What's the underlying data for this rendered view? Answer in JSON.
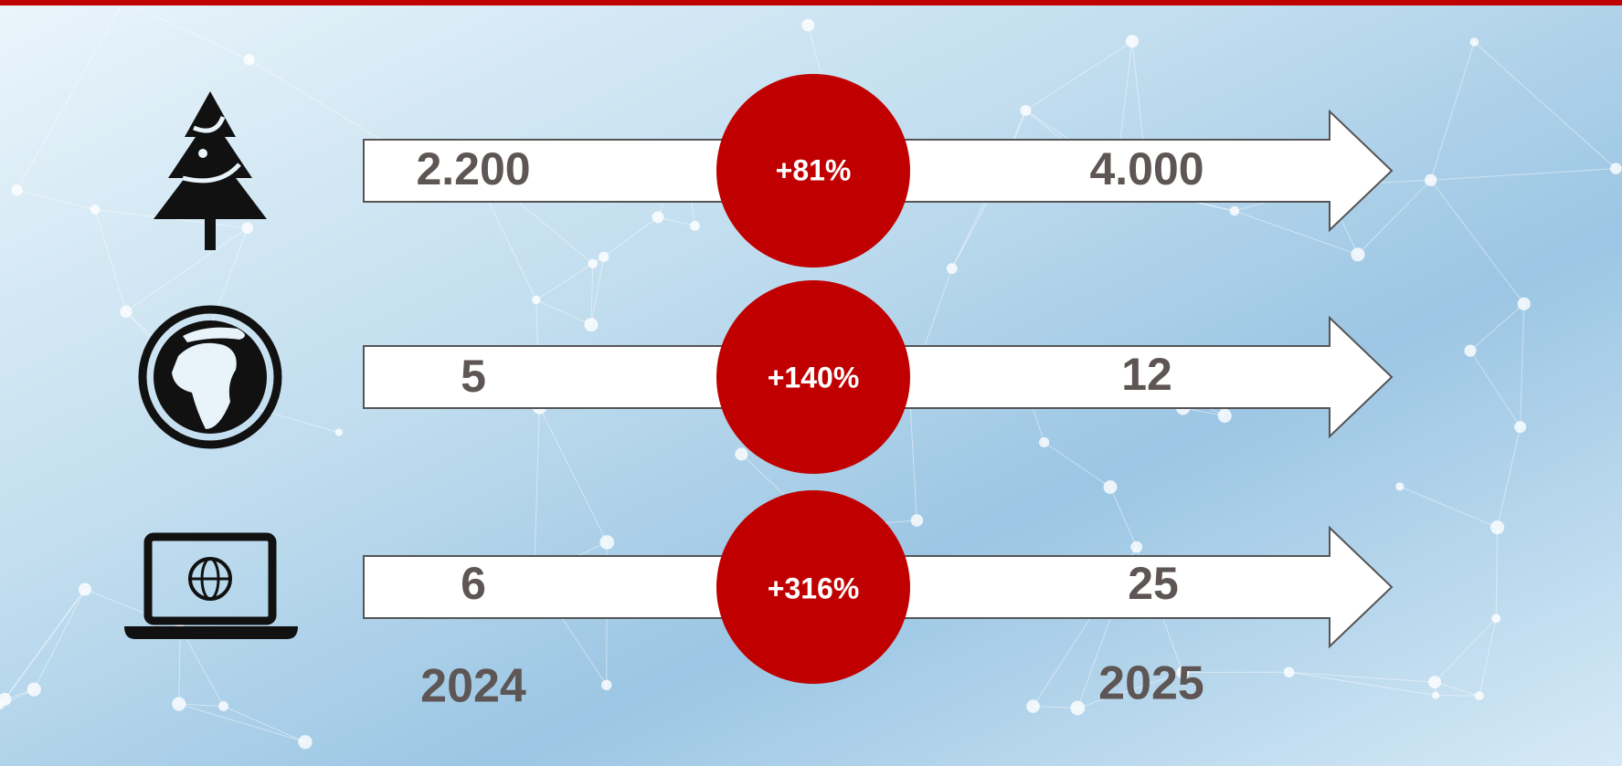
{
  "rows": [
    {
      "from": "2.200",
      "change": "+81%",
      "to": "4.000"
    },
    {
      "from": "5",
      "change": "+140%",
      "to": "12"
    },
    {
      "from": "6",
      "change": "+316%",
      "to": "25"
    }
  ],
  "years": {
    "from": "2024",
    "to": "2025"
  }
}
